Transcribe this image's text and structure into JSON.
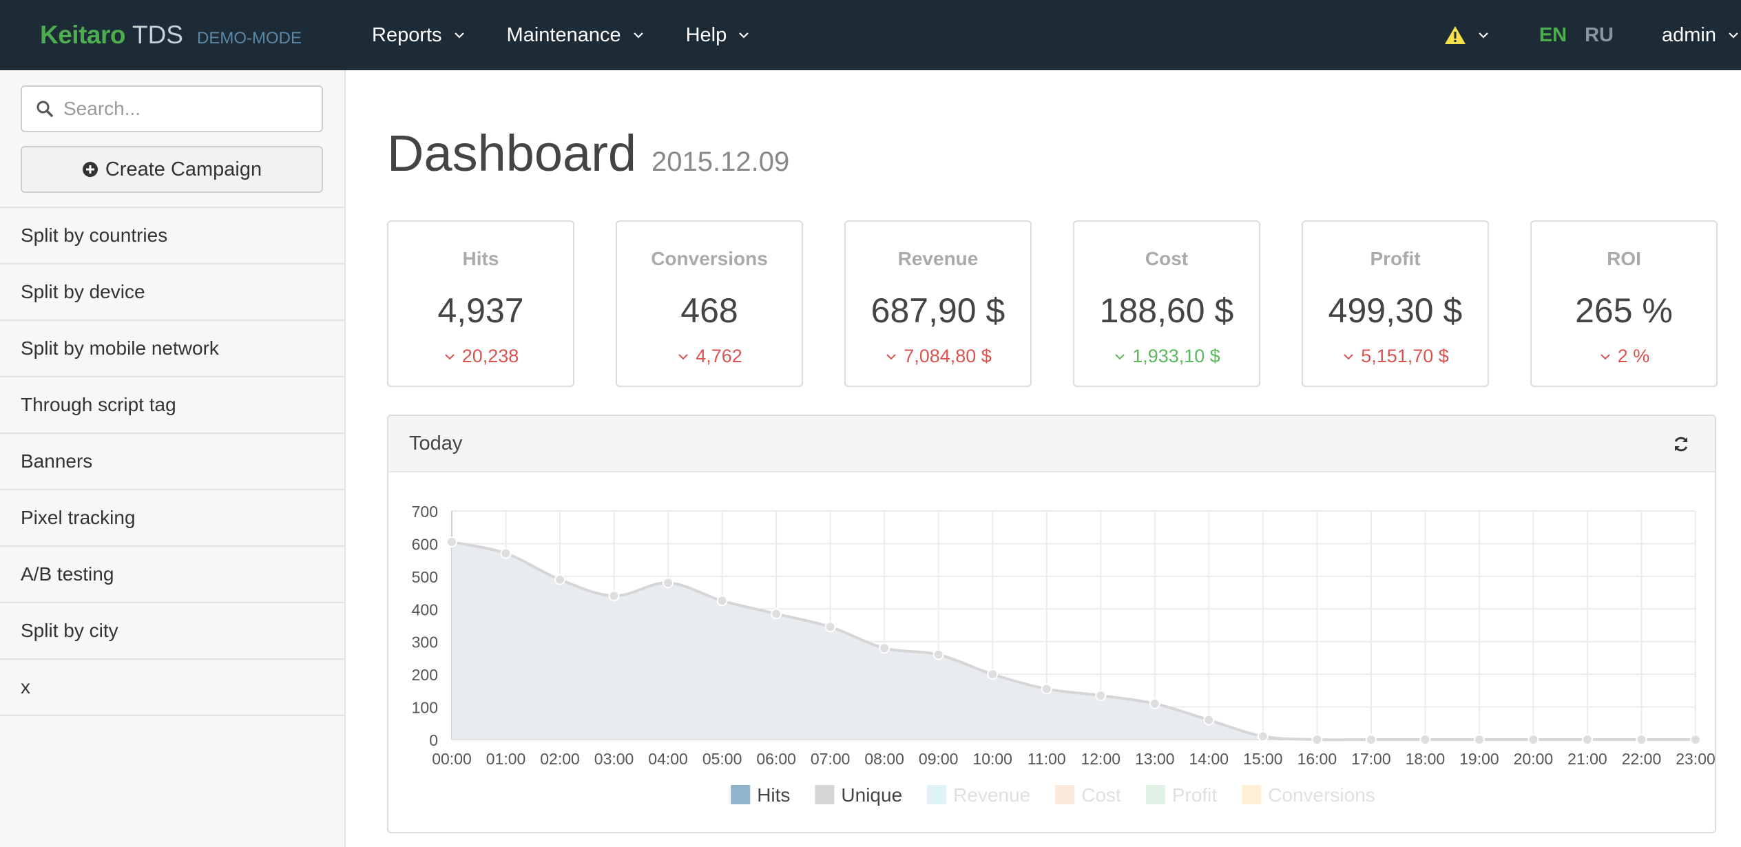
{
  "navbar": {
    "brand_name": "Keitaro",
    "brand_product": "TDS",
    "brand_mode": "DEMO-MODE",
    "menu": [
      {
        "label": "Reports"
      },
      {
        "label": "Maintenance"
      },
      {
        "label": "Help"
      }
    ],
    "languages": {
      "active": "EN",
      "inactive": "RU"
    },
    "user": "admin",
    "warning_icon": "warning-icon"
  },
  "sidebar": {
    "search_placeholder": "Search...",
    "create_label": "Create Campaign",
    "campaigns": [
      {
        "label": "Split by countries"
      },
      {
        "label": "Split by device"
      },
      {
        "label": "Split by mobile network"
      },
      {
        "label": "Through script tag"
      },
      {
        "label": "Banners"
      },
      {
        "label": "Pixel tracking"
      },
      {
        "label": "A/B testing"
      },
      {
        "label": "Split by city"
      },
      {
        "label": "x"
      }
    ]
  },
  "main": {
    "title": "Dashboard",
    "date": "2015.12.09",
    "cards": [
      {
        "label": "Hits",
        "value": "4,937",
        "delta": "20,238",
        "trend": "down",
        "color": "#d9534f"
      },
      {
        "label": "Conversions",
        "value": "468",
        "delta": "4,762",
        "trend": "down",
        "color": "#d9534f"
      },
      {
        "label": "Revenue",
        "value": "687,90 $",
        "delta": "7,084,80 $",
        "trend": "down",
        "color": "#d9534f"
      },
      {
        "label": "Cost",
        "value": "188,60 $",
        "delta": "1,933,10 $",
        "trend": "down",
        "color": "#5cb85c"
      },
      {
        "label": "Profit",
        "value": "499,30 $",
        "delta": "5,151,70 $",
        "trend": "down",
        "color": "#d9534f"
      },
      {
        "label": "ROI",
        "value": "265 %",
        "delta": "2 %",
        "trend": "down",
        "color": "#d9534f"
      }
    ],
    "panel_title": "Today"
  },
  "chart_data": {
    "type": "area",
    "x": [
      "00:00",
      "01:00",
      "02:00",
      "03:00",
      "04:00",
      "05:00",
      "06:00",
      "07:00",
      "08:00",
      "09:00",
      "10:00",
      "11:00",
      "12:00",
      "13:00",
      "14:00",
      "15:00",
      "16:00",
      "17:00",
      "18:00",
      "19:00",
      "20:00",
      "21:00",
      "22:00",
      "23:00"
    ],
    "ylim": [
      0,
      700
    ],
    "yticks": [
      0,
      100,
      200,
      300,
      400,
      500,
      600,
      700
    ],
    "grid": true,
    "series": [
      {
        "name": "Hits",
        "values": [
          605,
          570,
          490,
          440,
          480,
          425,
          385,
          345,
          280,
          260,
          200,
          155,
          135,
          110,
          60,
          10,
          0,
          0,
          0,
          0,
          0,
          0,
          0,
          0
        ],
        "color": "#8fb4cc",
        "active": true
      }
    ],
    "legend": [
      {
        "name": "Hits",
        "color": "#8fb4cc",
        "active": true
      },
      {
        "name": "Unique",
        "color": "#d6d6d6",
        "active": true
      },
      {
        "name": "Revenue",
        "color": "#dff3f6",
        "active": false
      },
      {
        "name": "Cost",
        "color": "#fde9d9",
        "active": false
      },
      {
        "name": "Profit",
        "color": "#e0f1e6",
        "active": false
      },
      {
        "name": "Conversions",
        "color": "#fdf0d4",
        "active": false
      }
    ],
    "legend_position": "bottom"
  }
}
